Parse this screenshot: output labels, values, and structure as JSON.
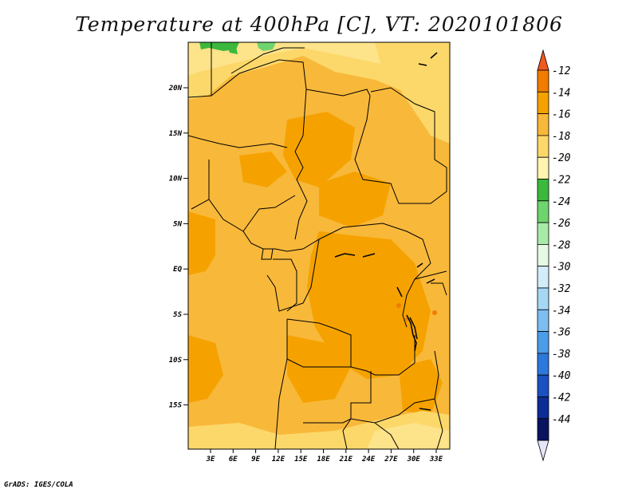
{
  "title": "Temperature at 400hPa [C], VT: 2020101806",
  "credit": "GrADS: IGES/COLA",
  "map": {
    "lat_labels": [
      "20N",
      "15N",
      "10N",
      "5N",
      "EQ",
      "5S",
      "10S",
      "15S"
    ],
    "lon_labels": [
      "3E",
      "6E",
      "9E",
      "12E",
      "15E",
      "18E",
      "21E",
      "24E",
      "27E",
      "30E",
      "33E"
    ],
    "field": "temperature_400hPa",
    "units": "C"
  },
  "colorbar": {
    "labels": [
      "-12",
      "-14",
      "-16",
      "-18",
      "-20",
      "-22",
      "-24",
      "-26",
      "-28",
      "-30",
      "-32",
      "-34",
      "-36",
      "-38",
      "-40",
      "-42",
      "-44"
    ],
    "colors": [
      "#f05a1e",
      "#f07c00",
      "#f5a200",
      "#f8b83a",
      "#fcd86a",
      "#fff4b0",
      "#3cb83c",
      "#6ed46e",
      "#a8eaa8",
      "#e4fae4",
      "#d2ecfa",
      "#a6d8f4",
      "#7cbef0",
      "#4c9ce8",
      "#2c78dc",
      "#1a50c0",
      "#0c2c96",
      "#0a1460",
      "#e6e6fa"
    ]
  }
}
